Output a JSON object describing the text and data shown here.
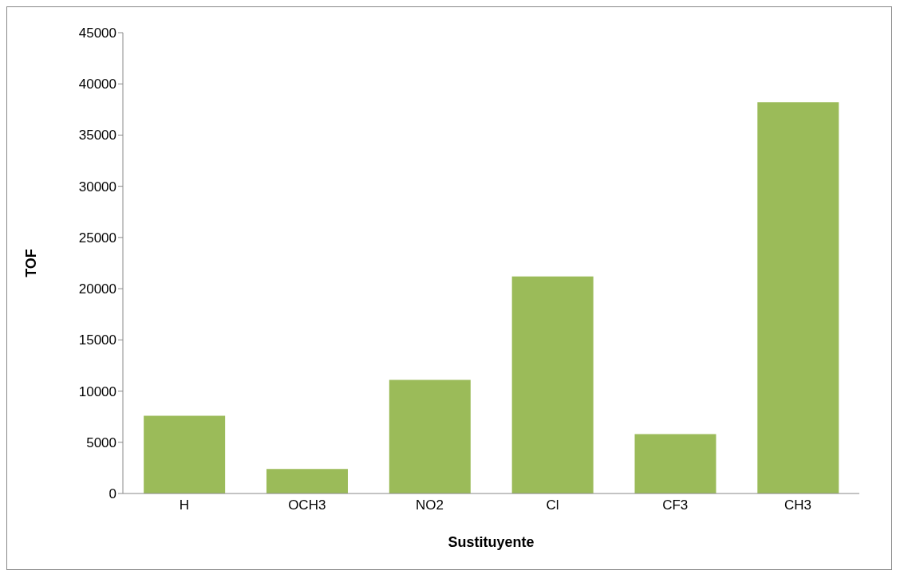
{
  "chart_data": {
    "type": "bar",
    "xlabel": "Sustituyente",
    "ylabel": "TOF",
    "categories": [
      "H",
      "OCH3",
      "NO2",
      "Cl",
      "CF3",
      "CH3"
    ],
    "values": [
      7600,
      2400,
      11100,
      21200,
      5800,
      38200
    ],
    "color": "#9bbb59",
    "ylim": [
      0,
      45000
    ],
    "yticks": [
      0,
      5000,
      10000,
      15000,
      20000,
      25000,
      30000,
      35000,
      40000,
      45000
    ],
    "grid": false,
    "legend": false
  }
}
